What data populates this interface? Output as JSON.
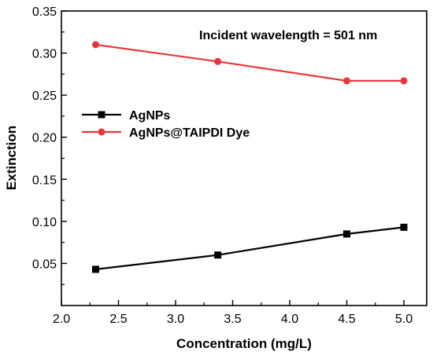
{
  "chart_data": {
    "type": "line",
    "xlabel": "Concentration (mg/L)",
    "ylabel": "Extinction",
    "xlim": [
      2.0,
      5.2
    ],
    "ylim": [
      0.0,
      0.35
    ],
    "xticks": [
      2.0,
      2.5,
      3.0,
      3.5,
      4.0,
      4.5,
      5.0
    ],
    "yticks": [
      0.05,
      0.1,
      0.15,
      0.2,
      0.25,
      0.3,
      0.35
    ],
    "xtick_labels": [
      "2.0",
      "2.5",
      "3.0",
      "3.5",
      "4.0",
      "4.5",
      "5.0"
    ],
    "ytick_labels": [
      "0.05",
      "0.10",
      "0.15",
      "0.20",
      "0.25",
      "0.30",
      "0.35"
    ],
    "annotation": "Incident wavelength = 501 nm",
    "grid": false,
    "legend_position": "center-left",
    "series": [
      {
        "name": "AgNPs",
        "marker": "square",
        "color": "#000000",
        "x": [
          2.3,
          3.37,
          4.5,
          5.0
        ],
        "y": [
          0.043,
          0.06,
          0.085,
          0.093
        ]
      },
      {
        "name": "AgNPs@TAIPDI Dye",
        "marker": "circle",
        "color": "#e8373c",
        "x": [
          2.3,
          3.37,
          4.5,
          5.0
        ],
        "y": [
          0.31,
          0.29,
          0.267,
          0.267
        ]
      }
    ]
  }
}
